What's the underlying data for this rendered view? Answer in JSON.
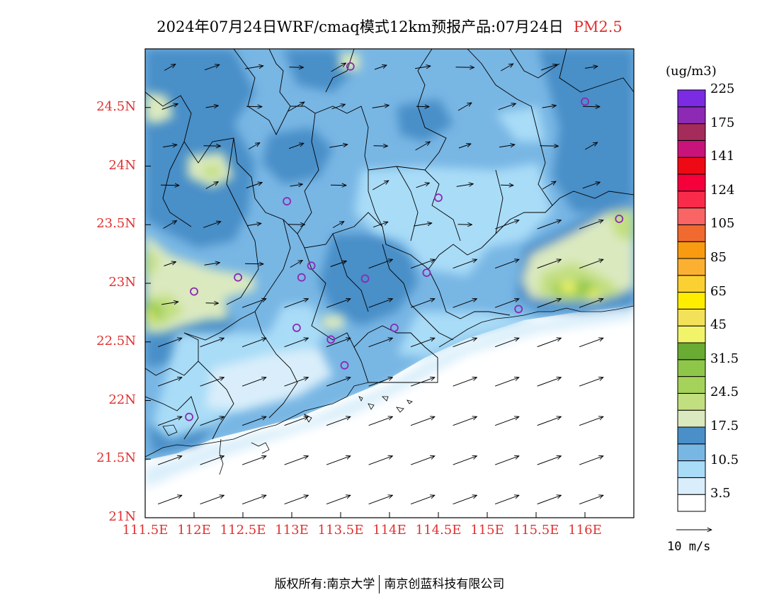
{
  "header": {
    "title": "2024年07月24日WRF/cmaq模式12km预报产品:07月24日",
    "pollutant": "PM2.5"
  },
  "legend": {
    "unit": "(ug/m3)",
    "colors": [
      "#ffffff",
      "#d9eefa",
      "#a9dcf7",
      "#78b6e4",
      "#4a8fc8",
      "#dbe9bf",
      "#c2df80",
      "#a5d25a",
      "#8ec64a",
      "#6aab34",
      "#f1f469",
      "#f4e15a",
      "#ffed00",
      "#fbd032",
      "#fbb032",
      "#f89b10",
      "#f06a30",
      "#f96464",
      "#fa2b4a",
      "#f6003c",
      "#ee0a14",
      "#c8147a",
      "#a52b5a",
      "#8c2ab4",
      "#7b2be2"
    ],
    "labels": [
      {
        "text": "3.5",
        "boundary": 1
      },
      {
        "text": "10.5",
        "boundary": 3
      },
      {
        "text": "17.5",
        "boundary": 5
      },
      {
        "text": "24.5",
        "boundary": 7
      },
      {
        "text": "31.5",
        "boundary": 9
      },
      {
        "text": "45",
        "boundary": 11
      },
      {
        "text": "65",
        "boundary": 13
      },
      {
        "text": "85",
        "boundary": 15
      },
      {
        "text": "105",
        "boundary": 17
      },
      {
        "text": "124",
        "boundary": 19
      },
      {
        "text": "141",
        "boundary": 21
      },
      {
        "text": "175",
        "boundary": 23
      },
      {
        "text": "225",
        "boundary": 25
      }
    ]
  },
  "axes": {
    "lat_ticks": [
      "21N",
      "21.5N",
      "22N",
      "22.5N",
      "23N",
      "23.5N",
      "24N",
      "24.5N"
    ],
    "lat_values": [
      21,
      21.5,
      22,
      22.5,
      23,
      23.5,
      24,
      24.5
    ],
    "lon_ticks": [
      "111.5E",
      "112E",
      "112.5E",
      "113E",
      "113.5E",
      "114E",
      "114.5E",
      "115E",
      "115.5E",
      "116E"
    ],
    "lon_values": [
      111.5,
      112,
      112.5,
      113,
      113.5,
      114,
      114.5,
      115,
      115.5,
      116
    ],
    "lon_range": [
      111.5,
      116.5
    ],
    "lat_range": [
      21,
      25
    ]
  },
  "wind": {
    "reference_label": "10 m/s"
  },
  "stations": [
    {
      "lon": 113.6,
      "lat": 24.85
    },
    {
      "lon": 116.0,
      "lat": 24.55
    },
    {
      "lon": 112.95,
      "lat": 23.7
    },
    {
      "lon": 114.5,
      "lat": 23.73
    },
    {
      "lon": 116.35,
      "lat": 23.55
    },
    {
      "lon": 112.45,
      "lat": 23.05
    },
    {
      "lon": 113.1,
      "lat": 23.05
    },
    {
      "lon": 113.2,
      "lat": 23.15
    },
    {
      "lon": 113.75,
      "lat": 23.04
    },
    {
      "lon": 114.38,
      "lat": 23.09
    },
    {
      "lon": 112.0,
      "lat": 22.93
    },
    {
      "lon": 113.05,
      "lat": 22.62
    },
    {
      "lon": 113.4,
      "lat": 22.52
    },
    {
      "lon": 114.05,
      "lat": 22.62
    },
    {
      "lon": 113.54,
      "lat": 22.3
    },
    {
      "lon": 115.32,
      "lat": 22.78
    },
    {
      "lon": 111.95,
      "lat": 21.86
    }
  ],
  "footer": {
    "left": "版权所有:南京大学",
    "right": "南京创蓝科技有限公司"
  }
}
